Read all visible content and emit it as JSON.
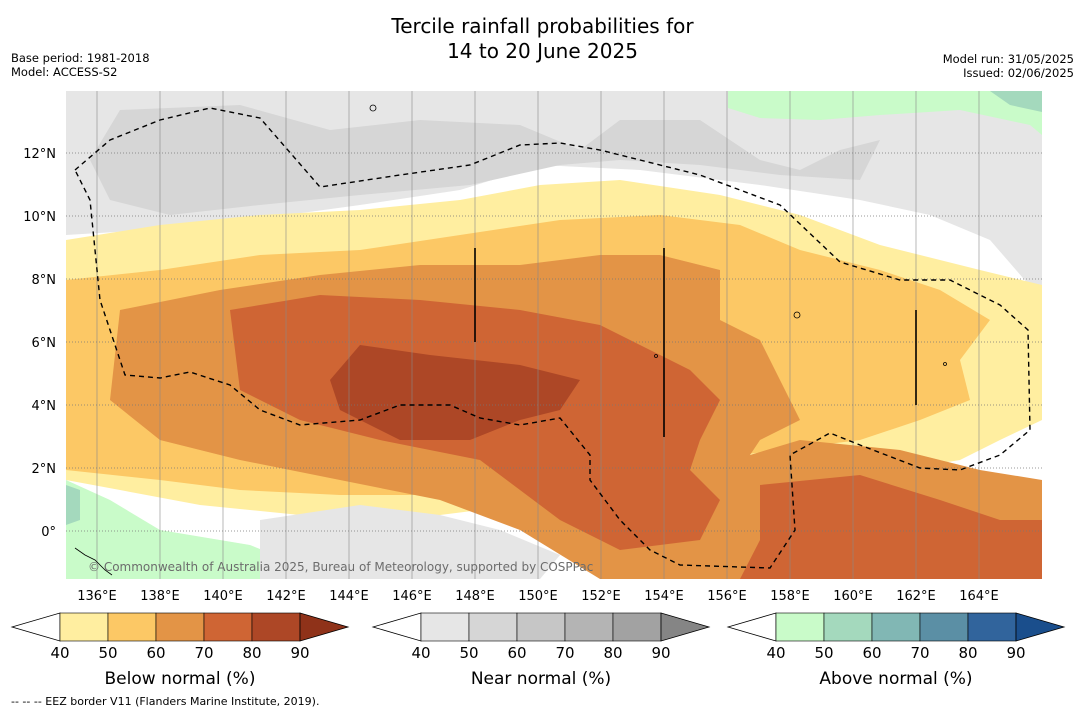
{
  "header": {
    "title_line1": "Tercile rainfall probabilities for",
    "title_line2": "14 to 20 June 2025",
    "base_period": "Base period: 1981-2018",
    "model": "Model: ACCESS-S2",
    "model_run": "Model run: 31/05/2025",
    "issued": "Issued: 02/06/2025"
  },
  "map": {
    "lon_labels": [
      "136°E",
      "138°E",
      "140°E",
      "142°E",
      "144°E",
      "146°E",
      "148°E",
      "150°E",
      "152°E",
      "154°E",
      "156°E",
      "158°E",
      "160°E",
      "162°E",
      "164°E"
    ],
    "lat_labels": [
      "12°N",
      "10°N",
      "8°N",
      "6°N",
      "4°N",
      "2°N",
      "0°"
    ],
    "copyright": "© Commonwealth of Australia 2025, Bureau of Meteorology, supported by COSPPac"
  },
  "colorbars": [
    {
      "title": "Below normal (%)",
      "ticks": [
        "40",
        "50",
        "60",
        "70",
        "80",
        "90"
      ],
      "colors": [
        "#ffeea0",
        "#fcc865",
        "#e39446",
        "#cf6534",
        "#ad4726",
        "#8f3219"
      ]
    },
    {
      "title": "Near normal (%)",
      "ticks": [
        "40",
        "50",
        "60",
        "70",
        "80",
        "90"
      ],
      "colors": [
        "#e6e6e6",
        "#d6d6d6",
        "#c6c6c6",
        "#b4b4b4",
        "#a2a2a2",
        "#858585"
      ]
    },
    {
      "title": "Above normal (%)",
      "ticks": [
        "40",
        "50",
        "60",
        "70",
        "80",
        "90"
      ],
      "colors": [
        "#c9fbc9",
        "#a4d9bd",
        "#81b7b4",
        "#5b8fa5",
        "#31649c",
        "#1a4e8c"
      ]
    }
  ],
  "footnote": "--  --  -- EEZ border V11 (Flanders Marine Institute, 2019)."
}
